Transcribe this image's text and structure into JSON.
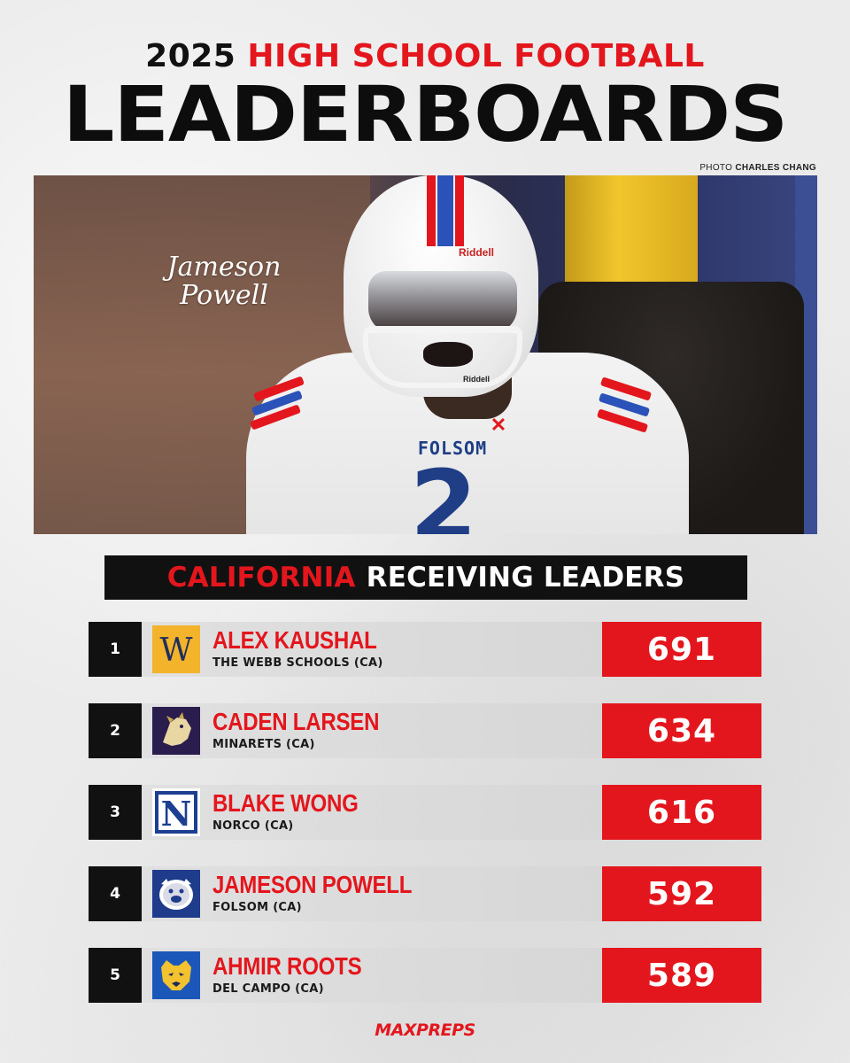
{
  "header": {
    "year": "2025",
    "subtitle_accent": "HIGH SCHOOL FOOTBALL",
    "title": "LEADERBOARDS",
    "photo_credit_prefix": "PHOTO",
    "photo_credit_name": "CHARLES CHANG"
  },
  "photo": {
    "signature": "Jameson Powell",
    "helmet_brand": "Riddell",
    "jersey_team": "FOLSOM",
    "jersey_number": "2",
    "apparel_logo": "under-armour-icon"
  },
  "section": {
    "state": "CALIFORNIA",
    "title": "RECEIVING LEADERS"
  },
  "leaders": [
    {
      "rank": "1",
      "name": "ALEX KAUSHAL",
      "school": "THE WEBB SCHOOLS (CA)",
      "value": "691",
      "logo": "webb-schools-logo"
    },
    {
      "rank": "2",
      "name": "CADEN LARSEN",
      "school": "MINARETS (CA)",
      "value": "634",
      "logo": "minarets-mustang-logo"
    },
    {
      "rank": "3",
      "name": "BLAKE WONG",
      "school": "NORCO (CA)",
      "value": "616",
      "logo": "norco-n-logo"
    },
    {
      "rank": "4",
      "name": "JAMESON POWELL",
      "school": "FOLSOM (CA)",
      "value": "592",
      "logo": "folsom-bulldog-logo"
    },
    {
      "rank": "5",
      "name": "AHMIR ROOTS",
      "school": "DEL CAMPO (CA)",
      "value": "589",
      "logo": "del-campo-cougar-logo"
    }
  ],
  "footer": {
    "brand": "MAXPREPS"
  },
  "colors": {
    "accent_red": "#e4161d",
    "dark": "#111111",
    "row_bg": "#dcdcdc",
    "jersey_blue": "#1f3e86"
  }
}
